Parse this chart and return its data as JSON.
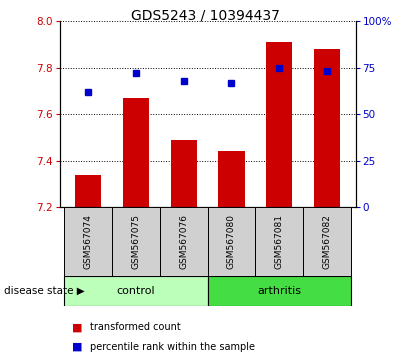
{
  "title": "GDS5243 / 10394437",
  "samples": [
    "GSM567074",
    "GSM567075",
    "GSM567076",
    "GSM567080",
    "GSM567081",
    "GSM567082"
  ],
  "bar_values": [
    7.34,
    7.67,
    7.49,
    7.44,
    7.91,
    7.88
  ],
  "percentile_values": [
    62,
    72,
    68,
    67,
    75,
    73
  ],
  "bar_bottom": 7.2,
  "ylim_left": [
    7.2,
    8.0
  ],
  "ylim_right": [
    0,
    100
  ],
  "yticks_left": [
    7.2,
    7.4,
    7.6,
    7.8,
    8.0
  ],
  "yticks_right": [
    0,
    25,
    50,
    75,
    100
  ],
  "bar_color": "#cc0000",
  "dot_color": "#0000cc",
  "group_positions": {
    "GSM567074": 0,
    "GSM567075": 1,
    "GSM567076": 2,
    "GSM567080": 3,
    "GSM567081": 4,
    "GSM567082": 5
  },
  "groups": [
    {
      "label": "control",
      "samples": [
        "GSM567074",
        "GSM567075",
        "GSM567076"
      ],
      "color": "#bbffbb"
    },
    {
      "label": "arthritis",
      "samples": [
        "GSM567080",
        "GSM567081",
        "GSM567082"
      ],
      "color": "#44dd44"
    }
  ],
  "group_label": "disease state",
  "legend_items": [
    {
      "label": "transformed count",
      "color": "#cc0000"
    },
    {
      "label": "percentile rank within the sample",
      "color": "#0000cc"
    }
  ],
  "title_fontsize": 10,
  "tick_fontsize": 7.5,
  "label_fontsize": 6.5,
  "bar_width": 0.55,
  "bg_gray": "#d0d0d0"
}
